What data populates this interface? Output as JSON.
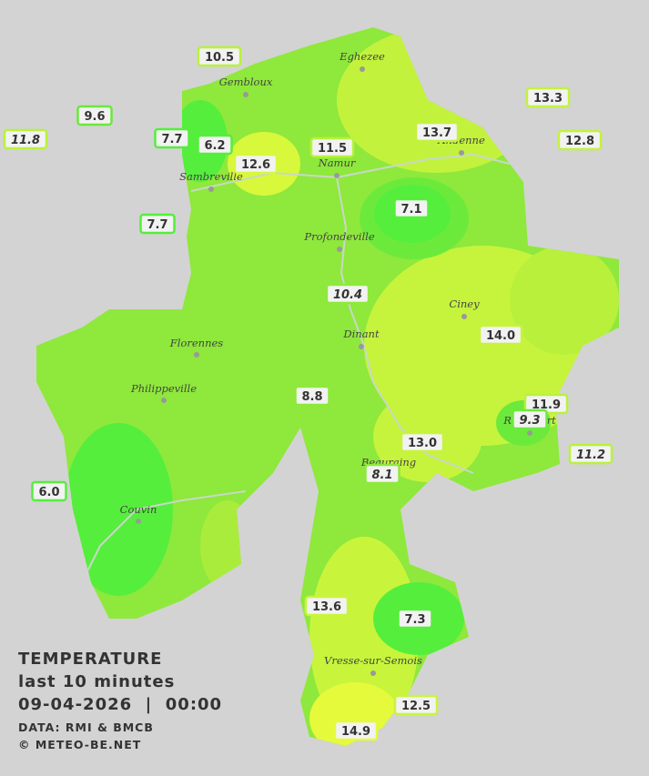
{
  "legend": {
    "title": "TEMPERATURE",
    "subtitle": "last 10 minutes",
    "timestamp": "09-04-2026  |  00:00",
    "source": "DATA: RMI & BMCB",
    "credit": "© METEO-BE.NET"
  },
  "cities": [
    "Eghezee",
    "Gembloux",
    "Andenne",
    "Namur",
    "Sambreville",
    "Profondeville",
    "Ciney",
    "Florennes",
    "Dinant",
    "Philippeville",
    "Rochefort",
    "Beauraing",
    "Couvin",
    "Vresse-sur-Semois"
  ],
  "stations": [
    "10.5",
    "9.6",
    "11.8",
    "7.7",
    "6.2",
    "12.6",
    "11.5",
    "13.7",
    "13.3",
    "12.8",
    "7.1",
    "7.7",
    "10.4",
    "14.0",
    "8.8",
    "11.9",
    "9.3",
    "13.0",
    "11.2",
    "8.1",
    "6.0",
    "13.6",
    "7.3",
    "12.5",
    "14.9"
  ]
}
